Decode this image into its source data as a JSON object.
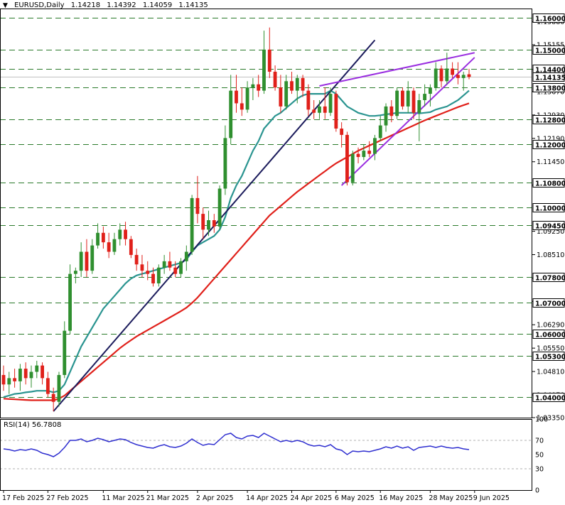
{
  "header": {
    "symbol": "EURUSD,Daily",
    "open": "1.14218",
    "high": "1.14392",
    "low": "1.14059",
    "close": "1.14135"
  },
  "rsi": {
    "label": "RSI(14) 56.7808"
  },
  "chart_data": {
    "type": "candlestick",
    "symbol": "EURUSD",
    "timeframe": "Daily",
    "ylim": [
      1.0335,
      1.163
    ],
    "current_price": "1.14135",
    "price_ticks": [
      "1.15880",
      "1.15155",
      "1.14370",
      "1.13670",
      "1.12930",
      "1.12190",
      "1.11450",
      "1.10710",
      "1.09250",
      "1.08510",
      "1.07770",
      "1.07030",
      "1.06290",
      "1.05550",
      "1.04810",
      "1.04070",
      "1.03350"
    ],
    "levels": [
      {
        "value": 1.16,
        "label": "1.16000"
      },
      {
        "value": 1.15,
        "label": "1.15000"
      },
      {
        "value": 1.144,
        "label": "1.14400"
      },
      {
        "value": 1.138,
        "label": "1.13800"
      },
      {
        "value": 1.128,
        "label": "1.12800"
      },
      {
        "value": 1.12,
        "label": "1.12000"
      },
      {
        "value": 1.108,
        "label": "1.10800"
      },
      {
        "value": 1.1,
        "label": "1.10000"
      },
      {
        "value": 1.0945,
        "label": "1.09450"
      },
      {
        "value": 1.078,
        "label": "1.07800"
      },
      {
        "value": 1.07,
        "label": "1.07000"
      },
      {
        "value": 1.06,
        "label": "1.06000"
      },
      {
        "value": 1.053,
        "label": "1.05300"
      },
      {
        "value": 1.04,
        "label": "1.04000"
      }
    ],
    "x_labels": [
      {
        "bar": 0,
        "label": "17 Feb 2025"
      },
      {
        "bar": 8,
        "label": "27 Feb 2025"
      },
      {
        "bar": 18,
        "label": "11 Mar 2025"
      },
      {
        "bar": 26,
        "label": "21 Mar 2025"
      },
      {
        "bar": 35,
        "label": "2 Apr 2025"
      },
      {
        "bar": 44,
        "label": "14 Apr 2025"
      },
      {
        "bar": 52,
        "label": "24 Apr 2025"
      },
      {
        "bar": 60,
        "label": "6 May 2025"
      },
      {
        "bar": 68,
        "label": "16 May 2025"
      },
      {
        "bar": 77,
        "label": "28 May 2025"
      },
      {
        "bar": 85,
        "label": "9 Jun 2025"
      }
    ],
    "candles": [
      [
        1.047,
        1.05,
        1.042,
        1.044
      ],
      [
        1.044,
        1.048,
        1.041,
        1.046
      ],
      [
        1.046,
        1.049,
        1.043,
        1.045
      ],
      [
        1.045,
        1.0505,
        1.042,
        1.049
      ],
      [
        1.049,
        1.051,
        1.044,
        1.046
      ],
      [
        1.046,
        1.05,
        1.043,
        1.048
      ],
      [
        1.048,
        1.0515,
        1.046,
        1.05
      ],
      [
        1.05,
        1.051,
        1.044,
        1.046
      ],
      [
        1.046,
        1.048,
        1.04,
        1.041
      ],
      [
        1.041,
        1.043,
        1.0355,
        1.0385
      ],
      [
        1.0385,
        1.048,
        1.037,
        1.047
      ],
      [
        1.047,
        1.064,
        1.046,
        1.061
      ],
      [
        1.061,
        1.082,
        1.06,
        1.079
      ],
      [
        1.079,
        1.081,
        1.076,
        1.08
      ],
      [
        1.08,
        1.089,
        1.078,
        1.086
      ],
      [
        1.086,
        1.09,
        1.078,
        1.08
      ],
      [
        1.08,
        1.09,
        1.079,
        1.088
      ],
      [
        1.088,
        1.095,
        1.087,
        1.092
      ],
      [
        1.092,
        1.094,
        1.087,
        1.089
      ],
      [
        1.089,
        1.092,
        1.084,
        1.086
      ],
      [
        1.086,
        1.092,
        1.085,
        1.09
      ],
      [
        1.09,
        1.095,
        1.088,
        1.093
      ],
      [
        1.093,
        1.0955,
        1.088,
        1.09
      ],
      [
        1.09,
        1.091,
        1.084,
        1.085
      ],
      [
        1.085,
        1.087,
        1.08,
        1.082
      ],
      [
        1.082,
        1.085,
        1.078,
        1.08
      ],
      [
        1.08,
        1.083,
        1.077,
        1.079
      ],
      [
        1.079,
        1.081,
        1.075,
        1.076
      ],
      [
        1.076,
        1.082,
        1.075,
        1.081
      ],
      [
        1.081,
        1.085,
        1.079,
        1.083
      ],
      [
        1.083,
        1.086,
        1.08,
        1.081
      ],
      [
        1.081,
        1.083,
        1.078,
        1.079
      ],
      [
        1.079,
        1.084,
        1.078,
        1.083
      ],
      [
        1.083,
        1.088,
        1.08,
        1.086
      ],
      [
        1.086,
        1.104,
        1.085,
        1.103
      ],
      [
        1.103,
        1.11,
        1.095,
        1.098
      ],
      [
        1.098,
        1.1,
        1.09,
        1.093
      ],
      [
        1.093,
        1.099,
        1.091,
        1.096
      ],
      [
        1.096,
        1.098,
        1.092,
        1.094
      ],
      [
        1.094,
        1.107,
        1.093,
        1.106
      ],
      [
        1.106,
        1.126,
        1.104,
        1.122
      ],
      [
        1.122,
        1.142,
        1.12,
        1.137
      ],
      [
        1.137,
        1.142,
        1.13,
        1.133
      ],
      [
        1.133,
        1.138,
        1.129,
        1.131
      ],
      [
        1.131,
        1.14,
        1.13,
        1.138
      ],
      [
        1.138,
        1.141,
        1.134,
        1.139
      ],
      [
        1.139,
        1.142,
        1.135,
        1.137
      ],
      [
        1.137,
        1.156,
        1.136,
        1.15
      ],
      [
        1.15,
        1.157,
        1.141,
        1.143
      ],
      [
        1.143,
        1.145,
        1.137,
        1.138
      ],
      [
        1.138,
        1.142,
        1.13,
        1.132
      ],
      [
        1.132,
        1.142,
        1.131,
        1.14
      ],
      [
        1.14,
        1.143,
        1.136,
        1.137
      ],
      [
        1.137,
        1.142,
        1.133,
        1.141
      ],
      [
        1.141,
        1.142,
        1.135,
        1.137
      ],
      [
        1.137,
        1.139,
        1.129,
        1.131
      ],
      [
        1.131,
        1.134,
        1.128,
        1.13
      ],
      [
        1.13,
        1.134,
        1.128,
        1.132
      ],
      [
        1.132,
        1.138,
        1.128,
        1.13
      ],
      [
        1.13,
        1.138,
        1.129,
        1.136
      ],
      [
        1.136,
        1.137,
        1.124,
        1.125
      ],
      [
        1.125,
        1.127,
        1.119,
        1.123
      ],
      [
        1.123,
        1.124,
        1.107,
        1.108
      ],
      [
        1.108,
        1.118,
        1.107,
        1.117
      ],
      [
        1.117,
        1.119,
        1.114,
        1.116
      ],
      [
        1.116,
        1.12,
        1.115,
        1.118
      ],
      [
        1.118,
        1.121,
        1.116,
        1.117
      ],
      [
        1.117,
        1.123,
        1.115,
        1.122
      ],
      [
        1.122,
        1.129,
        1.121,
        1.126
      ],
      [
        1.126,
        1.133,
        1.124,
        1.132
      ],
      [
        1.132,
        1.134,
        1.127,
        1.129
      ],
      [
        1.129,
        1.138,
        1.128,
        1.137
      ],
      [
        1.137,
        1.138,
        1.131,
        1.132
      ],
      [
        1.132,
        1.14,
        1.13,
        1.137
      ],
      [
        1.137,
        1.138,
        1.128,
        1.13
      ],
      [
        1.13,
        1.136,
        1.121,
        1.134
      ],
      [
        1.134,
        1.139,
        1.132,
        1.136
      ],
      [
        1.136,
        1.139,
        1.132,
        1.138
      ],
      [
        1.138,
        1.146,
        1.137,
        1.144
      ],
      [
        1.144,
        1.145,
        1.138,
        1.14
      ],
      [
        1.14,
        1.149,
        1.139,
        1.144
      ],
      [
        1.144,
        1.146,
        1.141,
        1.142
      ],
      [
        1.142,
        1.146,
        1.139,
        1.141
      ],
      [
        1.141,
        1.143,
        1.137,
        1.142
      ],
      [
        1.14218,
        1.14392,
        1.14059,
        1.14135
      ]
    ],
    "ma_fast": [
      1.04,
      1.0405,
      1.041,
      1.0412,
      1.0415,
      1.0417,
      1.042,
      1.042,
      1.042,
      1.0415,
      1.042,
      1.044,
      1.048,
      1.052,
      1.056,
      1.059,
      1.062,
      1.065,
      1.068,
      1.07,
      1.072,
      1.074,
      1.076,
      1.0775,
      1.0785,
      1.079,
      1.0795,
      1.08,
      1.0805,
      1.081,
      1.0815,
      1.082,
      1.0825,
      1.0835,
      1.086,
      1.088,
      1.089,
      1.09,
      1.091,
      1.093,
      1.097,
      1.103,
      1.107,
      1.11,
      1.114,
      1.118,
      1.121,
      1.125,
      1.127,
      1.129,
      1.13,
      1.1315,
      1.133,
      1.1345,
      1.1355,
      1.136,
      1.136,
      1.136,
      1.136,
      1.137,
      1.136,
      1.134,
      1.132,
      1.131,
      1.13,
      1.1295,
      1.129,
      1.129,
      1.1292,
      1.1295,
      1.1297,
      1.13,
      1.13,
      1.13,
      1.13,
      1.1298,
      1.13,
      1.1302,
      1.131,
      1.1315,
      1.132,
      1.133,
      1.134,
      1.1355,
      1.137
    ],
    "ma_slow": [
      1.0395,
      1.0394,
      1.0393,
      1.0392,
      1.0391,
      1.039,
      1.039,
      1.039,
      1.039,
      1.039,
      1.0395,
      1.0405,
      1.042,
      1.0435,
      1.045,
      1.0465,
      1.048,
      1.0495,
      1.051,
      1.0525,
      1.054,
      1.0555,
      1.0568,
      1.058,
      1.0592,
      1.0602,
      1.0612,
      1.0622,
      1.0632,
      1.0642,
      1.0652,
      1.0662,
      1.0672,
      1.0683,
      1.0698,
      1.0715,
      1.0735,
      1.0755,
      1.0775,
      1.0795,
      1.0815,
      1.0835,
      1.0855,
      1.0875,
      1.0895,
      1.0915,
      1.0935,
      1.0955,
      1.0975,
      1.099,
      1.1005,
      1.102,
      1.1035,
      1.105,
      1.1063,
      1.1076,
      1.1089,
      1.1102,
      1.1115,
      1.1128,
      1.114,
      1.115,
      1.116,
      1.117,
      1.118,
      1.1188,
      1.1196,
      1.1204,
      1.1212,
      1.122,
      1.1228,
      1.1236,
      1.1244,
      1.1252,
      1.126,
      1.1268,
      1.1276,
      1.1283,
      1.129,
      1.1297,
      1.1304,
      1.1311,
      1.1318,
      1.1324,
      1.133
    ],
    "rsi_ticks": [
      "100",
      "70",
      "50",
      "30",
      "0"
    ],
    "rsi_values": [
      58,
      57,
      55,
      57,
      56,
      58,
      56,
      52,
      50,
      47,
      52,
      60,
      70,
      70,
      72,
      68,
      70,
      73,
      71,
      68,
      70,
      72,
      71,
      67,
      64,
      62,
      60,
      59,
      62,
      64,
      61,
      60,
      62,
      66,
      72,
      67,
      63,
      65,
      64,
      71,
      78,
      80,
      74,
      72,
      76,
      77,
      74,
      80,
      76,
      72,
      68,
      70,
      68,
      70,
      68,
      64,
      62,
      63,
      61,
      64,
      58,
      56,
      50,
      55,
      54,
      55,
      54,
      56,
      58,
      61,
      59,
      62,
      59,
      61,
      56,
      60,
      61,
      62,
      60,
      62,
      60,
      59,
      60,
      58,
      57
    ],
    "colors": {
      "bull": "#2f8f2f",
      "bear": "#e0201a",
      "ma_fast": "#2a9490",
      "ma_slow": "#e0201a",
      "trend_main": "#1c1c5c",
      "wedge": "#9a2ee0",
      "level": "#2a7a2a",
      "rsi": "#2f2fd0"
    }
  }
}
